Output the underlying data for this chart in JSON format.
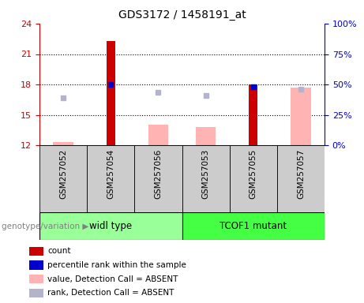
{
  "title": "GDS3172 / 1458191_at",
  "samples": [
    "GSM257052",
    "GSM257054",
    "GSM257056",
    "GSM257053",
    "GSM257055",
    "GSM257057"
  ],
  "groups": {
    "widl type": [
      0,
      1,
      2
    ],
    "TCOF1 mutant": [
      3,
      4,
      5
    ]
  },
  "ylim_left": [
    12,
    24
  ],
  "yticks_left": [
    12,
    15,
    18,
    21,
    24
  ],
  "ylim_right": [
    0,
    100
  ],
  "yticks_right": [
    0,
    25,
    50,
    75,
    100
  ],
  "red_bars": {
    "heights": [
      null,
      22.3,
      null,
      null,
      18.0,
      null
    ],
    "base": 12
  },
  "pink_bars": {
    "heights": [
      12.3,
      null,
      14.0,
      13.8,
      null,
      17.7
    ],
    "base": 12
  },
  "blue_squares": {
    "values": [
      null,
      18.0,
      null,
      null,
      17.8,
      null
    ],
    "comment": "percentile rank within the sample - on left axis scale"
  },
  "lavender_squares": {
    "values": [
      16.7,
      null,
      17.2,
      16.9,
      null,
      17.5
    ],
    "comment": "rank, Detection Call = ABSENT"
  },
  "colors": {
    "red": "#cc0000",
    "pink": "#ffb3b3",
    "blue": "#0000cc",
    "lavender": "#b3b3cc",
    "group1_bg": "#99ff99",
    "group2_bg": "#33ff33",
    "plot_bg": "white",
    "tick_label_left": "#cc0000",
    "tick_label_right": "#0000cc",
    "grid": "black",
    "xlabel_bg": "#cccccc"
  },
  "legend_items": [
    {
      "label": "count",
      "color": "#cc0000",
      "marker": "s"
    },
    {
      "label": "percentile rank within the sample",
      "color": "#0000cc",
      "marker": "s"
    },
    {
      "label": "value, Detection Call = ABSENT",
      "color": "#ffb3b3",
      "marker": "s"
    },
    {
      "label": "rank, Detection Call = ABSENT",
      "color": "#b3b3cc",
      "marker": "s"
    }
  ],
  "group_label_left": "genotype/variation",
  "group_labels": [
    "widl type",
    "TCOF1 mutant"
  ]
}
